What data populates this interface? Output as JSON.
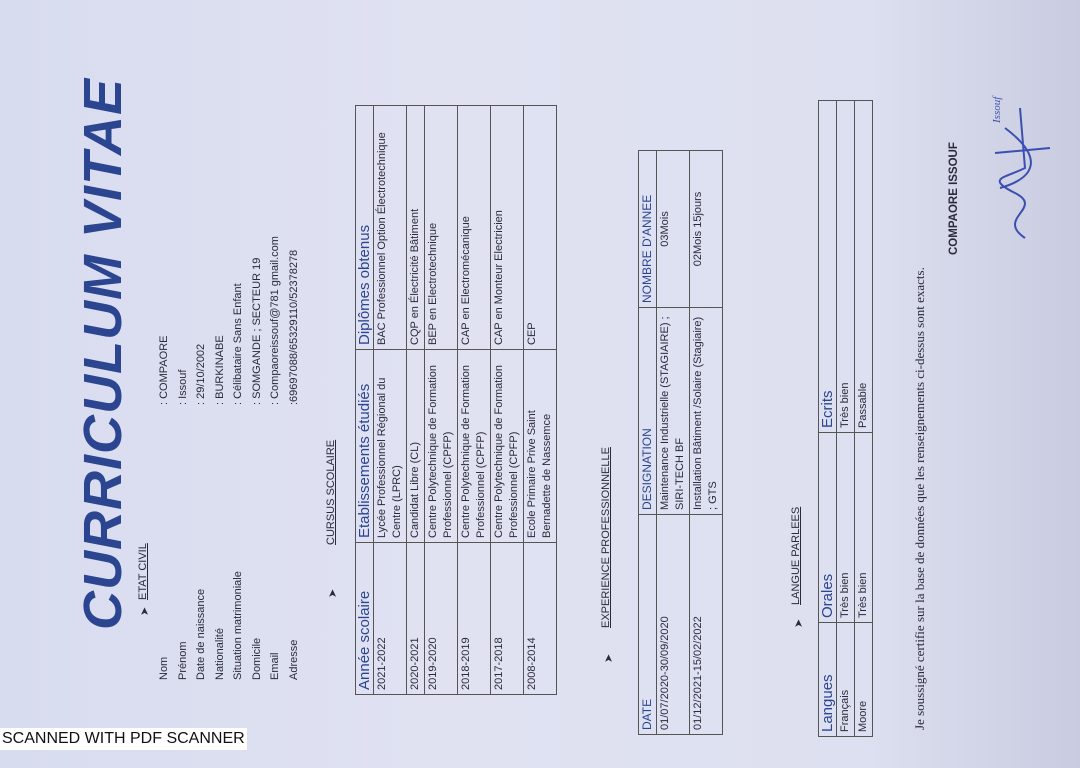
{
  "title": "CURRICULUM VITAE",
  "etat_civil": {
    "heading": "ETAT CIVIL",
    "rows": [
      {
        "label": "Nom",
        "value": ": COMPAORE"
      },
      {
        "label": "Prénom",
        "value": ":   Issouf"
      },
      {
        "label": "Date de naissance",
        "value": ": 29/10/2002"
      },
      {
        "label": "Nationalité",
        "value": ": BURKINABE"
      },
      {
        "label": "Situation matrimoniale",
        "value": ": Célibataire  Sans  Enfant"
      },
      {
        "label": "Domicile",
        "value": ": SOMGANDE ; SECTEUR 19"
      },
      {
        "label": "Email",
        "value": ":  Compaoreissouf@781 gmail.com"
      },
      {
        "label": "Adresse",
        "value": ":69697088/65329110/52378278"
      }
    ]
  },
  "cursus": {
    "heading": "CURSUS  SCOLAIRE",
    "headers": [
      "Année scolaire",
      "Etablissements étudiés",
      "Diplômes obtenus"
    ],
    "rows": [
      [
        "2021-2022",
        "Lycée Professionnel Régional du Centre  (LPRC)",
        "BAC Professionnel Option Électrotechnique"
      ],
      [
        "2020-2021",
        "Candidat Libre (CL)",
        "CQP en Électricité Bâtiment"
      ],
      [
        "2019-2020",
        "Centre Polytechnique de Formation Professionnel (CPFP)",
        "BEP en Electrotechnique"
      ],
      [
        "2018-2019",
        "Centre Polytechnique de Formation Professionnel (CPFP)",
        "CAP en Electromécanique"
      ],
      [
        "2017-2018",
        "Centre Polytechnique de Formation Professionnel (CPFP)",
        "CAP en Monteur Electricien"
      ],
      [
        "2008-2014",
        "Ecole Primaire Prive Saint Bernadette de Nassemce",
        "CEP"
      ]
    ]
  },
  "experience": {
    "heading": "EXPERIENCE PROFESSIONNELLE",
    "headers": [
      "DATE",
      "DESIGNATION",
      "NOMBRE D'ANNEE"
    ],
    "rows": [
      [
        "01/07/2020-30/09/2020",
        "Maintenance Industrielle (STAGIAIRE) ; SIRI-TECH BF",
        "03Mois"
      ],
      [
        "01/12/2021-15/02/2022",
        "Installation Bâtiment /Solaire (Stagiaire) ; GTS",
        "02Mois 15jours"
      ]
    ]
  },
  "langues": {
    "heading": "LANGUE PARLEES",
    "headers": [
      "Langues",
      "Orales",
      "Ecrits"
    ],
    "rows": [
      [
        "Français",
        "Très bien",
        "Très bien"
      ],
      [
        "Moore",
        "Très bien",
        "Passable"
      ]
    ]
  },
  "certification": "Je soussigné certifie sur la base de données que les renseignements ci-dessus sont exacts.",
  "signatory": "COMPAORE ISSOUF",
  "signature_text": "Issouf",
  "scanner_stamp": "SCANNED WITH PDF SCANNER",
  "colors": {
    "heading_blue": "#2b4590",
    "paper": "#dde0f0",
    "signature_ink": "#3a4fb0"
  }
}
